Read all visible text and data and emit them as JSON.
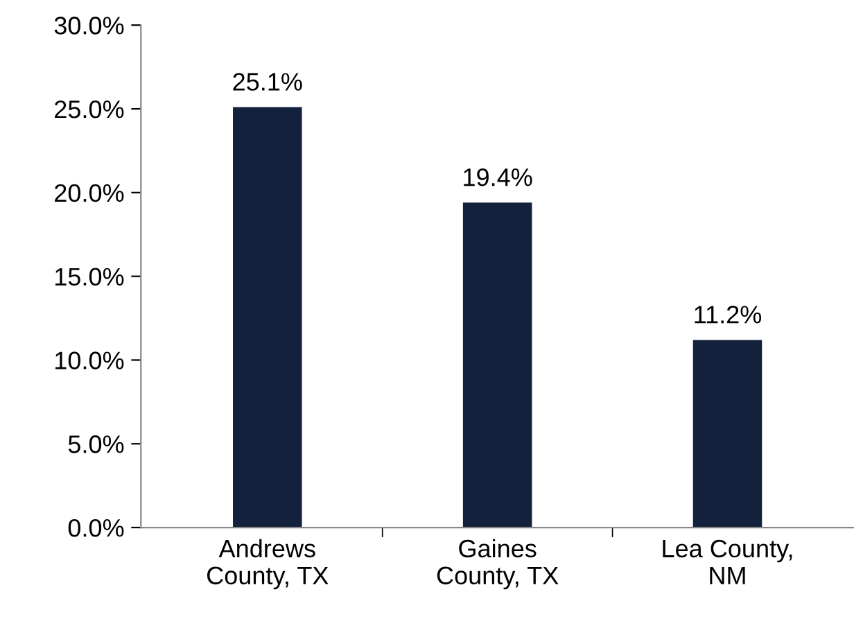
{
  "chart_data": {
    "type": "bar",
    "categories": [
      "Andrews\nCounty, TX",
      "Gaines\nCounty, TX",
      "Lea County,\nNM"
    ],
    "values": [
      25.1,
      19.4,
      11.2
    ],
    "value_labels": [
      "25.1%",
      "19.4%",
      "11.2%"
    ],
    "color": "#14213d",
    "ylim": [
      0,
      30
    ],
    "yticks": [
      {
        "value": 0,
        "label": "0.0%"
      },
      {
        "value": 5,
        "label": "5.0%"
      },
      {
        "value": 10,
        "label": "10.0%"
      },
      {
        "value": 15,
        "label": "15.0%"
      },
      {
        "value": 20,
        "label": "20.0%"
      },
      {
        "value": 25,
        "label": "25.0%"
      },
      {
        "value": 30,
        "label": "30.0%"
      }
    ],
    "grid": false
  }
}
